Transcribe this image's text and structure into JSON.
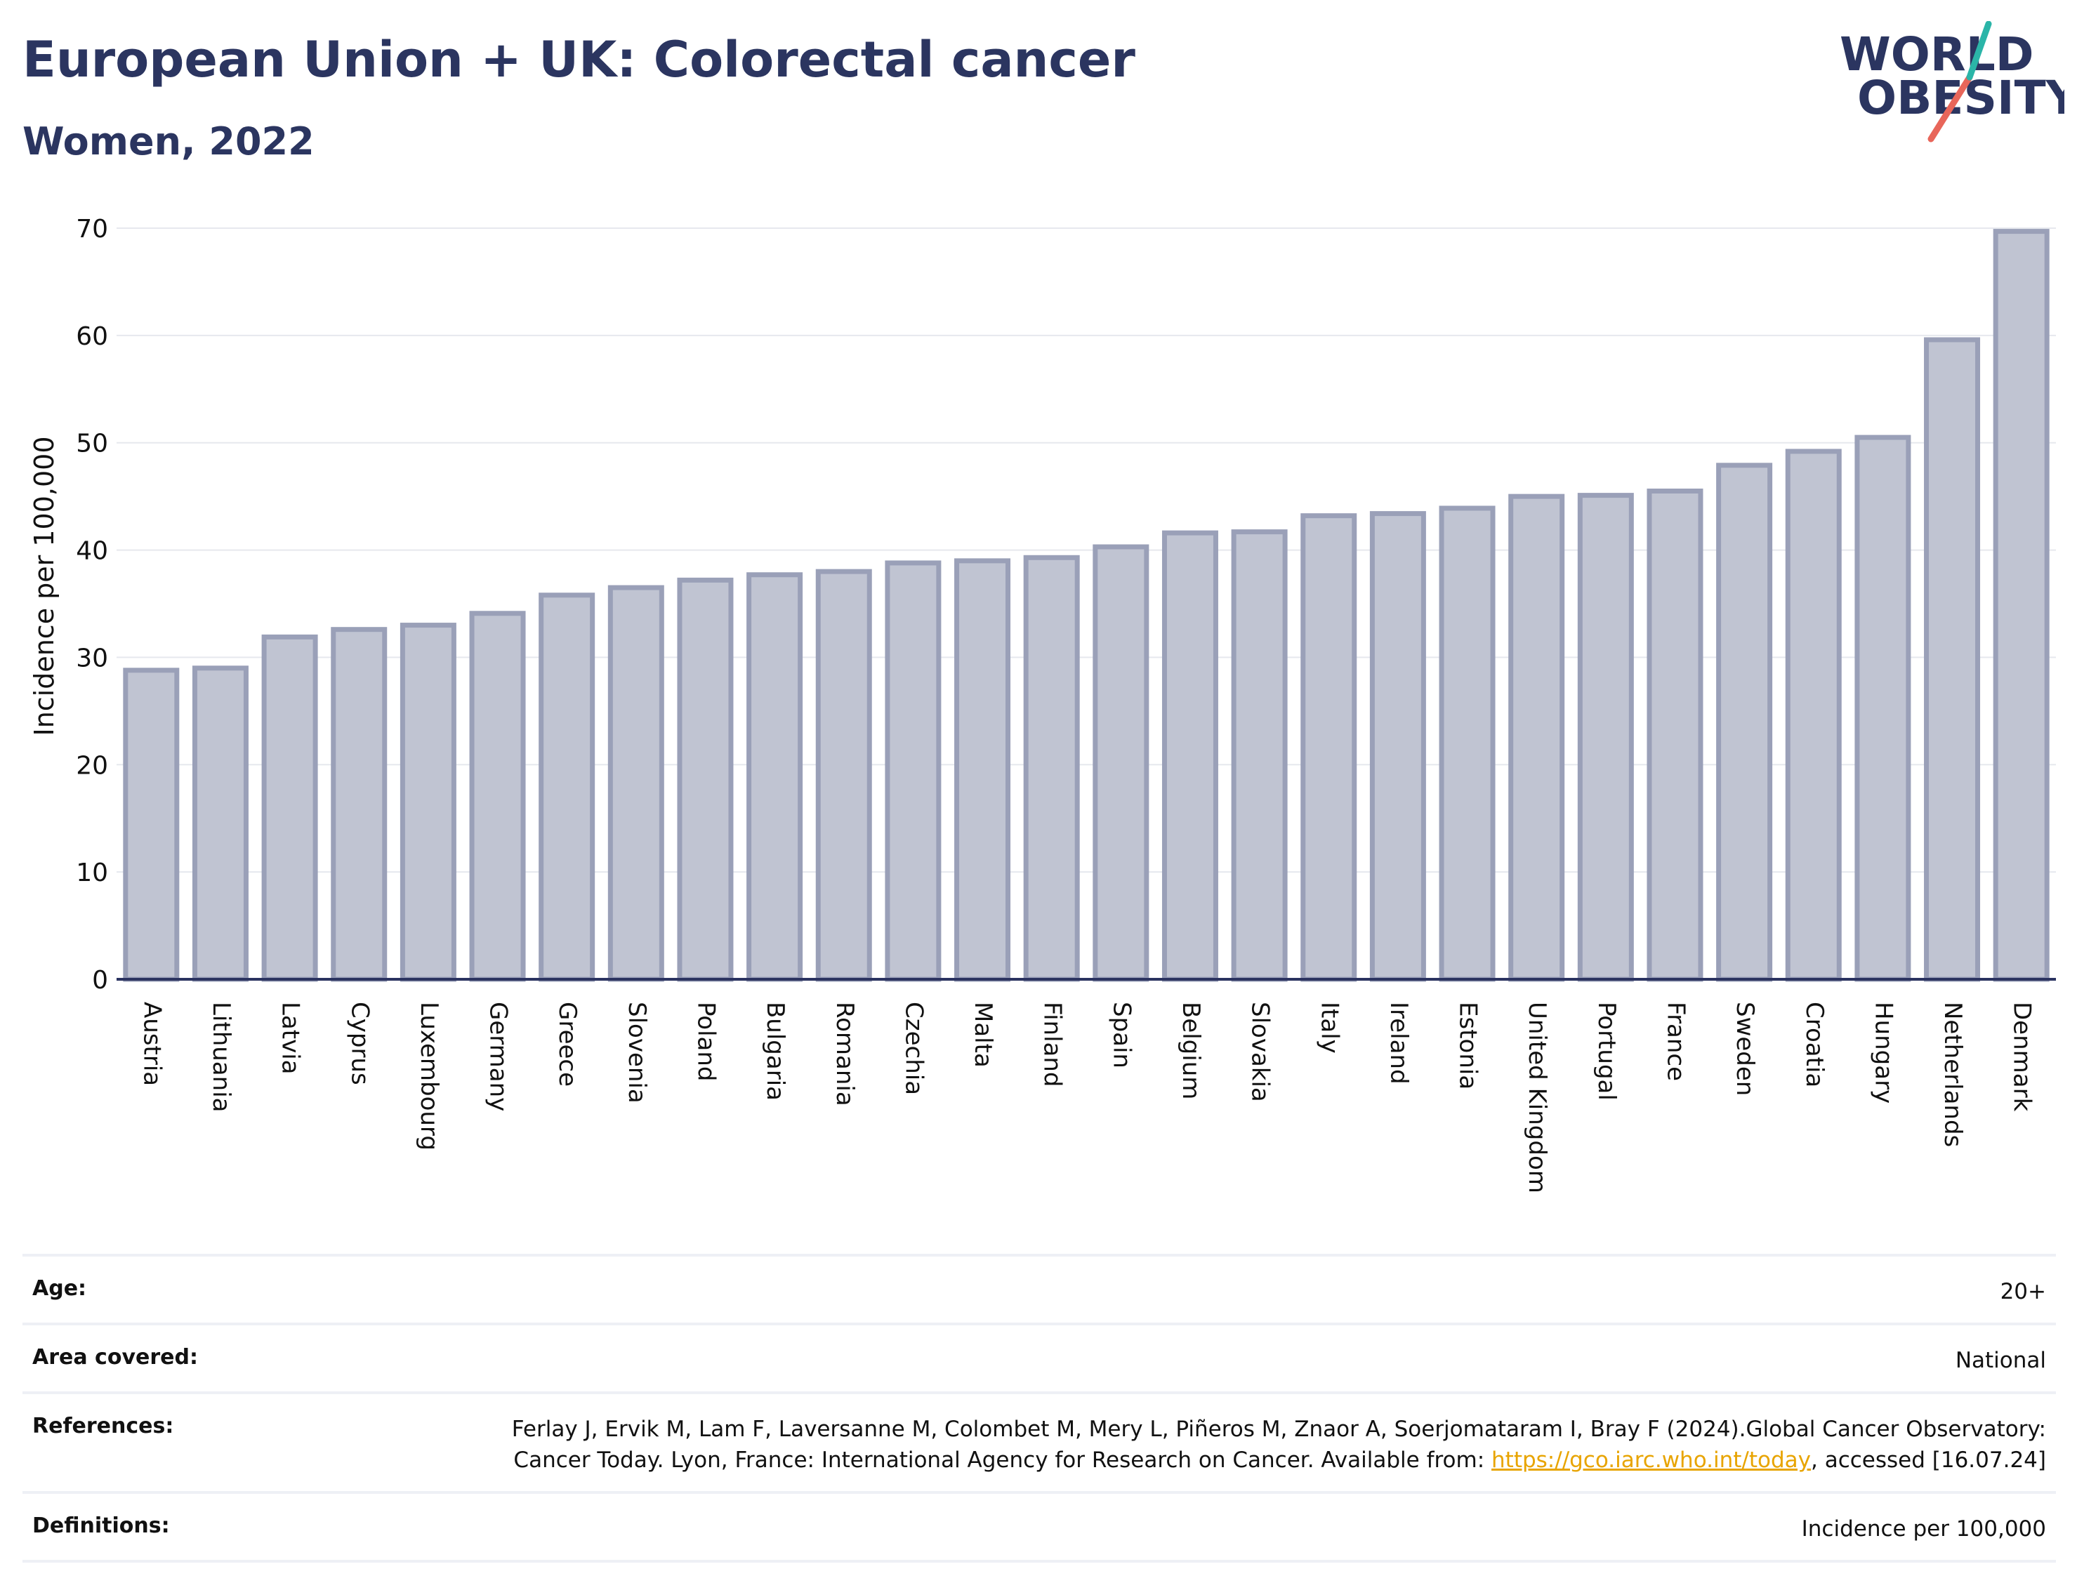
{
  "header": {
    "title": "European Union + UK: Colorectal cancer",
    "subtitle": "Women, 2022"
  },
  "logo": {
    "line1": "WORLD",
    "line2": "OBESITY",
    "accent_teal": "#2bb5a8",
    "accent_red": "#e8665a",
    "color": "#2b3560"
  },
  "chart_data": {
    "type": "bar",
    "categories": [
      "Austria",
      "Lithuania",
      "Latvia",
      "Cyprus",
      "Luxembourg",
      "Germany",
      "Greece",
      "Slovenia",
      "Poland",
      "Bulgaria",
      "Romania",
      "Czechia",
      "Malta",
      "Finland",
      "Spain",
      "Belgium",
      "Slovakia",
      "Italy",
      "Ireland",
      "Estonia",
      "United Kingdom",
      "Portugal",
      "France",
      "Sweden",
      "Croatia",
      "Hungary",
      "Netherlands",
      "Denmark"
    ],
    "values": [
      28.8,
      29.0,
      31.9,
      32.6,
      33.0,
      34.1,
      35.8,
      36.5,
      37.2,
      37.7,
      38.0,
      38.8,
      39.0,
      39.3,
      40.3,
      41.6,
      41.7,
      43.2,
      43.4,
      43.9,
      45.0,
      45.1,
      45.5,
      47.9,
      49.2,
      50.5,
      59.6,
      69.7
    ],
    "ylabel": "Incidence per 100,000",
    "ylim": [
      0,
      70
    ],
    "yticks": [
      0,
      10,
      20,
      30,
      40,
      50,
      60,
      70
    ],
    "grid": true,
    "bar_fill": "#c0c4d2",
    "bar_stroke": "#9aa0b8"
  },
  "meta": {
    "age_label": "Age:",
    "age_value": "20+",
    "area_label": "Area covered:",
    "area_value": "National",
    "refs_label": "References:",
    "refs_text1": "Ferlay J, Ervik M, Lam F, Laversanne M, Colombet M, Mery L, Piñeros M, Znaor A, Soerjomataram I, Bray F (2024).Global Cancer Observatory: Cancer Today. Lyon, France: International Agency for Research on Cancer. Available from: ",
    "refs_link": "https://gco.iarc.who.int/today",
    "refs_text2": ", accessed [16.07.24]",
    "defs_label": "Definitions:",
    "defs_value": "Incidence per 100,000"
  }
}
